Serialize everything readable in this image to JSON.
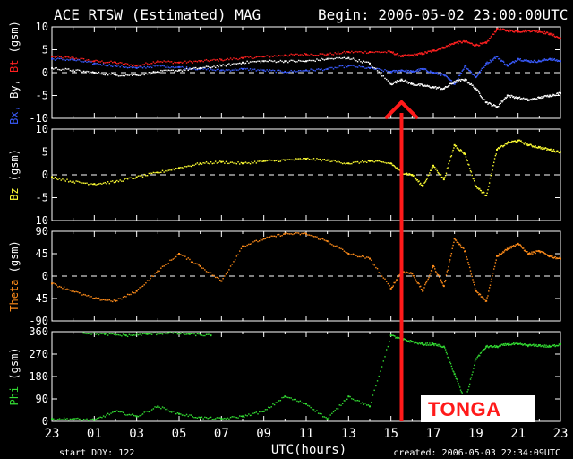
{
  "header": {
    "title": "ACE RTSW (Estimated) MAG",
    "begin": "Begin: 2006-05-02 23:00:00UTC"
  },
  "footer": {
    "start_doy": "start DOY:  122",
    "xlabel": "UTC(hours)",
    "created": "created: 2006-05-03 22:34:09UTC"
  },
  "annotation": {
    "label": "TONGA",
    "arrow_x_hour": 15.5,
    "label_color": "#ff1a1a",
    "arrow_color": "#ff1a1a"
  },
  "x_ticks": [
    "23",
    "01",
    "03",
    "05",
    "07",
    "09",
    "11",
    "13",
    "15",
    "17",
    "19",
    "21",
    "23"
  ],
  "chart_data": [
    {
      "type": "scatter",
      "panel": "B",
      "ylabel_parts": [
        {
          "text": "Bx,",
          "color": "#3a5cff"
        },
        {
          "text": " By,",
          "color": "#ffffff"
        },
        {
          "text": " Bt",
          "color": "#ff2020"
        },
        {
          "text": " (gsm)",
          "color": "#ffffff"
        }
      ],
      "ylim": [
        -10,
        10
      ],
      "yticks": [
        "10",
        "5",
        "0",
        "-5",
        "-10"
      ],
      "ytick_values": [
        10,
        5,
        0,
        -5,
        -10
      ],
      "xlim": [
        -1,
        23
      ],
      "zero_line": true,
      "series": [
        {
          "color": "#ff2020",
          "x": [
            -1,
            0,
            1,
            2,
            3,
            4,
            5,
            6,
            7,
            8,
            9,
            10,
            11,
            12,
            13,
            14,
            15,
            15.5,
            16,
            16.5,
            17,
            17.5,
            18,
            18.5,
            19,
            19.5,
            20,
            20.5,
            21,
            21.5,
            22,
            22.5,
            23
          ],
          "y": [
            3.5,
            3.2,
            2.5,
            2.2,
            1.5,
            2.5,
            2.2,
            2.5,
            2.8,
            3.2,
            3.5,
            3.8,
            4.0,
            4.0,
            4.5,
            4.5,
            4.5,
            3.6,
            3.8,
            4.2,
            4.8,
            5.5,
            6.5,
            6.8,
            6.0,
            6.5,
            9.5,
            9.2,
            9.0,
            9.2,
            9.0,
            8.5,
            7.5
          ]
        },
        {
          "color": "#3a5cff",
          "x": [
            -1,
            0,
            1,
            2,
            3,
            4,
            5,
            6,
            7,
            8,
            9,
            10,
            11,
            12,
            13,
            14,
            15,
            15.5,
            16,
            16.5,
            17,
            17.5,
            18,
            18.5,
            19,
            19.5,
            20,
            20.5,
            21,
            21.5,
            22,
            22.5,
            23
          ],
          "y": [
            3.0,
            2.8,
            2.0,
            1.5,
            1.0,
            1.5,
            1.2,
            0.8,
            0.5,
            0.8,
            0.5,
            0.2,
            0.5,
            0.8,
            1.5,
            1.0,
            0.2,
            0.5,
            0.2,
            0.8,
            0.0,
            -0.5,
            -2.5,
            1.5,
            -1.0,
            2.0,
            3.5,
            1.5,
            3.0,
            2.5,
            2.5,
            3.0,
            2.5
          ]
        },
        {
          "color": "#ffffff",
          "x": [
            -1,
            0,
            1,
            2,
            3,
            4,
            5,
            6,
            7,
            8,
            9,
            10,
            11,
            12,
            13,
            14,
            15,
            15.5,
            16,
            16.5,
            17,
            17.5,
            18,
            18.5,
            19,
            19.5,
            20,
            20.5,
            21,
            21.5,
            22,
            22.5,
            23
          ],
          "y": [
            1.0,
            0.5,
            0.0,
            -0.5,
            -0.5,
            0.2,
            0.5,
            1.0,
            1.5,
            2.2,
            2.5,
            2.5,
            2.5,
            3.0,
            3.2,
            2.0,
            -2.5,
            -1.5,
            -2.5,
            -2.8,
            -3.2,
            -3.5,
            -2.0,
            -1.5,
            -3.5,
            -6.5,
            -7.5,
            -5.0,
            -5.5,
            -6.0,
            -5.5,
            -5.0,
            -4.5
          ]
        }
      ]
    },
    {
      "type": "scatter",
      "panel": "Bz",
      "ylabel_parts": [
        {
          "text": "Bz",
          "color": "#ffff33"
        },
        {
          "text": " (gsm)",
          "color": "#ffffff"
        }
      ],
      "ylim": [
        -10,
        10
      ],
      "yticks": [
        "10",
        "5",
        "0",
        "-5",
        "-10"
      ],
      "ytick_values": [
        10,
        5,
        0,
        -5,
        -10
      ],
      "xlim": [
        -1,
        23
      ],
      "zero_line": true,
      "series": [
        {
          "color": "#ffff33",
          "x": [
            -1,
            0,
            1,
            2,
            3,
            4,
            5,
            6,
            7,
            8,
            9,
            10,
            11,
            12,
            13,
            14,
            15,
            15.5,
            16,
            16.5,
            17,
            17.5,
            18,
            18.5,
            19,
            19.5,
            20,
            20.5,
            21,
            21.5,
            22,
            22.5,
            23
          ],
          "y": [
            -0.5,
            -1.5,
            -2.0,
            -1.5,
            -0.5,
            0.5,
            1.5,
            2.5,
            2.8,
            2.5,
            3.0,
            3.2,
            3.5,
            3.2,
            2.5,
            3.0,
            2.5,
            0.5,
            0.0,
            -2.5,
            2.0,
            -1.0,
            6.5,
            4.5,
            -2.5,
            -4.5,
            5.5,
            7.0,
            7.5,
            6.5,
            6.0,
            5.5,
            5.0
          ]
        }
      ]
    },
    {
      "type": "scatter",
      "panel": "Theta",
      "ylabel_parts": [
        {
          "text": "Theta",
          "color": "#ff8c1a"
        },
        {
          "text": " (gsm)",
          "color": "#ffffff"
        }
      ],
      "ylim": [
        -90,
        90
      ],
      "yticks": [
        "90",
        "45",
        "0",
        "-45",
        "-90"
      ],
      "ytick_values": [
        90,
        45,
        0,
        -45,
        -90
      ],
      "xlim": [
        -1,
        23
      ],
      "zero_line": true,
      "series": [
        {
          "color": "#ff8c1a",
          "x": [
            -1,
            0,
            1,
            2,
            3,
            4,
            5,
            6,
            7,
            8,
            9,
            10,
            11,
            12,
            13,
            14,
            15,
            15.5,
            16,
            16.5,
            17,
            17.5,
            18,
            18.5,
            19,
            19.5,
            20,
            20.5,
            21,
            21.5,
            22,
            22.5,
            23
          ],
          "y": [
            -15,
            -30,
            -45,
            -50,
            -30,
            10,
            45,
            20,
            -10,
            60,
            75,
            85,
            85,
            70,
            45,
            35,
            -25,
            10,
            5,
            -30,
            20,
            -20,
            75,
            50,
            -30,
            -50,
            40,
            55,
            65,
            45,
            50,
            40,
            35
          ]
        }
      ]
    },
    {
      "type": "scatter",
      "panel": "Phi",
      "ylabel_parts": [
        {
          "text": "Phi",
          "color": "#33dd33"
        },
        {
          "text": " (gsm)",
          "color": "#ffffff"
        }
      ],
      "ylim": [
        0,
        360
      ],
      "yticks": [
        "360",
        "270",
        "180",
        "90",
        "0"
      ],
      "ytick_values": [
        360,
        270,
        180,
        90,
        0
      ],
      "xlim": [
        -1,
        23
      ],
      "zero_line": false,
      "series": [
        {
          "color": "#33dd33",
          "x": [
            -1,
            0,
            1,
            2,
            3,
            4,
            5,
            6,
            7,
            8,
            9,
            10,
            11,
            12,
            13,
            14,
            15,
            15.5,
            16,
            16.5,
            17,
            17.5,
            18,
            18.5,
            19,
            19.5,
            20,
            20.5,
            21,
            21.5,
            22,
            22.5,
            23
          ],
          "y": [
            10,
            10,
            5,
            40,
            20,
            60,
            30,
            15,
            10,
            20,
            40,
            100,
            70,
            10,
            100,
            60,
            345,
            330,
            320,
            310,
            310,
            300,
            190,
            80,
            250,
            300,
            300,
            310,
            310,
            305,
            305,
            300,
            310
          ]
        },
        {
          "color": "#33dd33",
          "x": [
            0.5,
            1.5,
            2.5,
            3.5,
            4.5,
            5.5,
            6.5
          ],
          "y": [
            355,
            350,
            345,
            350,
            355,
            350,
            345
          ]
        }
      ]
    }
  ]
}
